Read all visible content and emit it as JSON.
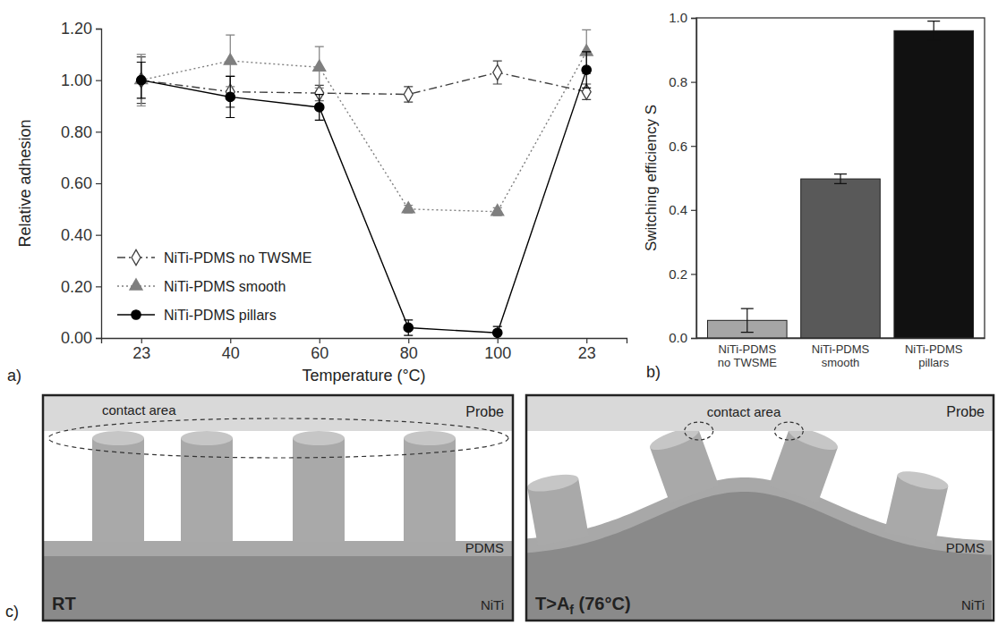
{
  "chart_data": [
    {
      "type": "line",
      "label": "a)",
      "x_label": "Temperature (°C)",
      "y_label": "Relative adhesion",
      "categories": [
        "23",
        "40",
        "60",
        "80",
        "100",
        "23"
      ],
      "ylim": [
        0,
        1.2
      ],
      "yticks": [
        {
          "value": 0,
          "label": "0.00"
        },
        {
          "value": 0.2,
          "label": "0.20"
        },
        {
          "value": 0.4,
          "label": "0.40"
        },
        {
          "value": 0.6,
          "label": "0.60"
        },
        {
          "value": 0.8,
          "label": "0.80"
        },
        {
          "value": 1.0,
          "label": "1.00"
        },
        {
          "value": 1.2,
          "label": "1.20"
        }
      ],
      "legend": "bottom-left",
      "series": [
        {
          "name": "NiTi-PDMS no TWSME",
          "color": "#404040",
          "marker": "open-diamond",
          "line_style": "dashdot",
          "values": [
            1.0,
            0.955,
            0.95,
            0.945,
            1.03,
            0.955
          ],
          "errors": [
            0.09,
            0.06,
            0.03,
            0.03,
            0.045,
            0.03
          ]
        },
        {
          "name": "NiTi-PDMS smooth",
          "color": "#7f7f7f",
          "marker": "triangle",
          "line_style": "dotted",
          "values": [
            1.0,
            1.075,
            1.05,
            0.5,
            0.49,
            1.11
          ],
          "errors": [
            0.1,
            0.1,
            0.08,
            0.015,
            0.015,
            0.085
          ]
        },
        {
          "name": "NiTi-PDMS pillars",
          "color": "#000000",
          "marker": "circle",
          "line_style": "solid",
          "values": [
            1.0,
            0.935,
            0.895,
            0.04,
            0.02,
            1.04
          ],
          "errors": [
            0.07,
            0.08,
            0.05,
            0.03,
            0.025,
            0.07
          ]
        }
      ]
    },
    {
      "type": "bar",
      "label": "b)",
      "y_label": "Switching efficiency S",
      "categories": [
        "NiTi-PDMS no TWSME",
        "NiTi-PDMS smooth",
        "NiTi-PDMS pillars"
      ],
      "values": [
        0.055,
        0.497,
        0.96
      ],
      "errors": [
        0.037,
        0.015,
        0.03
      ],
      "colors": [
        "#a6a6a6",
        "#595959",
        "#111111"
      ],
      "ylim": [
        0,
        1.0
      ],
      "yticks": [
        {
          "value": 0,
          "label": "0.0"
        },
        {
          "value": 0.2,
          "label": "0.2"
        },
        {
          "value": 0.4,
          "label": "0.4"
        },
        {
          "value": 0.6,
          "label": "0.6"
        },
        {
          "value": 0.8,
          "label": "0.8"
        },
        {
          "value": 1.0,
          "label": "1.0"
        }
      ]
    }
  ],
  "diagram": {
    "label": "c)",
    "panels": [
      {
        "condition": "RT",
        "probe": "Probe",
        "contact": "contact area",
        "layer": "PDMS",
        "substrate": "NiTi"
      },
      {
        "condition": "T>A",
        "condition_subscript": "f",
        "condition_suffix": " (76°C)",
        "probe": "Probe",
        "contact": "contact area",
        "layer": "PDMS",
        "substrate": "NiTi"
      }
    ]
  }
}
